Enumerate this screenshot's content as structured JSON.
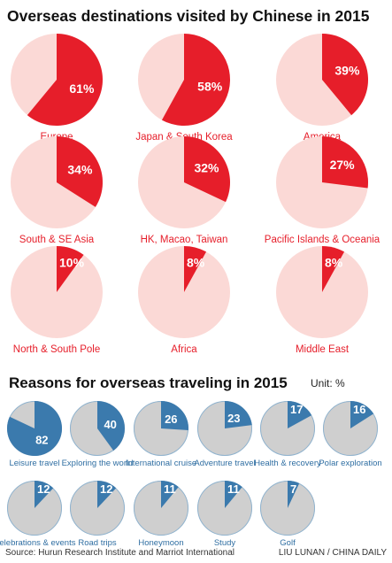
{
  "colors": {
    "red": "#e61e2a",
    "pink": "#fbd9d6",
    "blue": "#3b7aad",
    "gray": "#cfcfcf",
    "label_red": "#e61e2a",
    "label_blue": "#2f6ea2"
  },
  "chart_data": [
    {
      "type": "pie",
      "title": "Overseas destinations visited by Chinese in 2015",
      "unit": "%",
      "items": [
        {
          "name": "Europe",
          "value": 61,
          "label": "61%"
        },
        {
          "name": "Japan & South Korea",
          "value": 58,
          "label": "58%"
        },
        {
          "name": "America",
          "value": 39,
          "label": "39%"
        },
        {
          "name": "South & SE Asia",
          "value": 34,
          "label": "34%"
        },
        {
          "name": "HK, Macao, Taiwan",
          "value": 32,
          "label": "32%"
        },
        {
          "name": "Pacific Islands & Oceania",
          "value": 27,
          "label": "27%"
        },
        {
          "name": "North & South Pole",
          "value": 10,
          "label": "10%"
        },
        {
          "name": "Africa",
          "value": 8,
          "label": "8%"
        },
        {
          "name": "Middle East",
          "value": 8,
          "label": "8%"
        }
      ]
    },
    {
      "type": "pie",
      "title": "Reasons for overseas traveling in 2015",
      "unit_label": "Unit: %",
      "items": [
        {
          "name": "Leisure travel",
          "value": 82,
          "label": "82"
        },
        {
          "name": "Exploring the world",
          "value": 40,
          "label": "40"
        },
        {
          "name": "International cruise",
          "value": 26,
          "label": "26"
        },
        {
          "name": "Adventure travel",
          "value": 23,
          "label": "23"
        },
        {
          "name": "Health & recovery",
          "value": 17,
          "label": "17"
        },
        {
          "name": "Polar exploration",
          "value": 16,
          "label": "16"
        },
        {
          "name": "Celebrations & events",
          "value": 12,
          "label": "12"
        },
        {
          "name": "Road trips",
          "value": 12,
          "label": "12"
        },
        {
          "name": "Honeymoon",
          "value": 11,
          "label": "11"
        },
        {
          "name": "Study",
          "value": 11,
          "label": "11"
        },
        {
          "name": "Golf",
          "value": 7,
          "label": "7"
        }
      ]
    }
  ],
  "footer": {
    "source": "Source: Hurun Research Institute and Marriot International",
    "credit": "LIU LUNAN / CHINA DAILY"
  }
}
